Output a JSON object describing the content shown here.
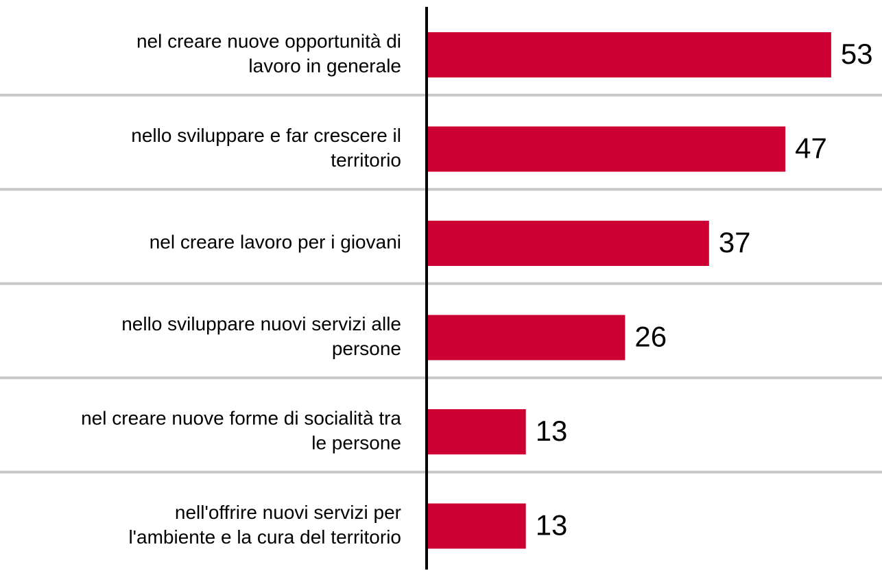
{
  "chart_data": {
    "type": "bar",
    "orientation": "horizontal",
    "categories": [
      [
        "nel creare nuove opportunità di",
        "lavoro in generale"
      ],
      [
        "nello sviluppare e far crescere il",
        "territorio"
      ],
      [
        "nel creare lavoro per i giovani"
      ],
      [
        "nello sviluppare nuovi servizi alle",
        "persone"
      ],
      [
        "nel creare nuove forme di socialità tra",
        "le persone"
      ],
      [
        "nell'offrire nuovi servizi per",
        "l'ambiente e la cura del territorio"
      ]
    ],
    "values": [
      53,
      47,
      37,
      26,
      13,
      13
    ],
    "color": "#cc0033",
    "xlim": [
      0,
      57.5
    ]
  }
}
